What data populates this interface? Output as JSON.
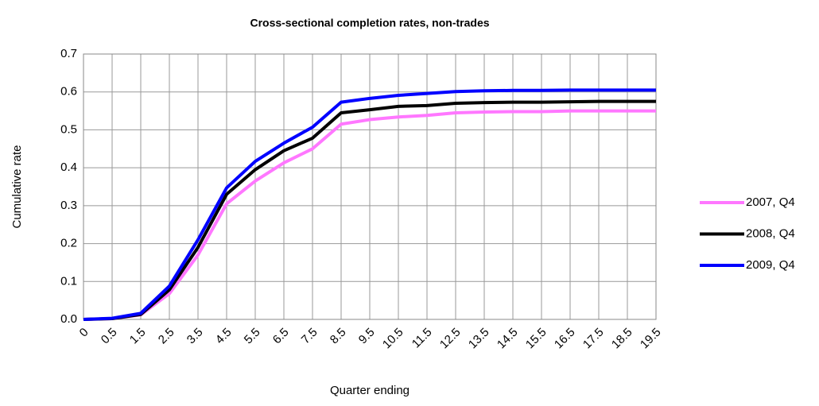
{
  "chart_data": {
    "type": "line",
    "title": "Cross-sectional completion rates, non-trades",
    "x_label": "Quarter ending",
    "y_label": "Cumulative rate",
    "categories": [
      "0",
      "0.5",
      "1.5",
      "2.5",
      "3.5",
      "4.5",
      "5.5",
      "6.5",
      "7.5",
      "8.5",
      "9.5",
      "10.5",
      "11.5",
      "12.5",
      "13.5",
      "14.5",
      "15.5",
      "16.5",
      "17.5",
      "18.5",
      "19.5"
    ],
    "series": [
      {
        "name": "2007, Q4",
        "color": "#ff77ff",
        "values": [
          0,
          0.002,
          0.012,
          0.068,
          0.17,
          0.305,
          0.365,
          0.413,
          0.45,
          0.515,
          0.527,
          0.534,
          0.538,
          0.545,
          0.547,
          0.548,
          0.548,
          0.55,
          0.55,
          0.55,
          0.55
        ]
      },
      {
        "name": "2008, Q4",
        "color": "#000000",
        "values": [
          0,
          0.002,
          0.013,
          0.078,
          0.19,
          0.33,
          0.395,
          0.445,
          0.478,
          0.545,
          0.553,
          0.562,
          0.564,
          0.57,
          0.572,
          0.573,
          0.573,
          0.574,
          0.575,
          0.575,
          0.575
        ]
      },
      {
        "name": "2009, Q4",
        "color": "#0000ff",
        "values": [
          0,
          0.003,
          0.016,
          0.088,
          0.21,
          0.347,
          0.417,
          0.465,
          0.507,
          0.573,
          0.583,
          0.591,
          0.596,
          0.601,
          0.603,
          0.604,
          0.604,
          0.605,
          0.605,
          0.605,
          0.605
        ]
      }
    ],
    "ylim": [
      0,
      0.7
    ],
    "yticks": [
      {
        "value": 0,
        "label": "0.0"
      },
      0.1,
      0.2,
      0.3,
      0.4,
      0.5,
      0.6,
      0.7
    ],
    "grid": true,
    "legend": "right"
  }
}
